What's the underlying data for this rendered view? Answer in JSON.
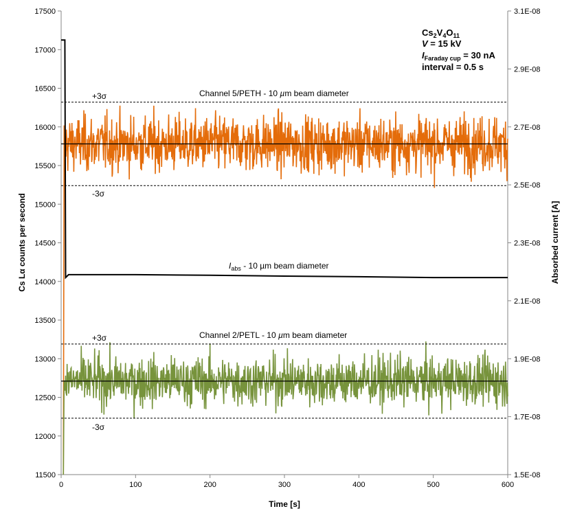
{
  "chart_data": {
    "type": "line",
    "xlabel": "Time [s]",
    "ylabel": "Cs Lα counts per second",
    "y2label": "Absorbed current [A]",
    "xlim": [
      0,
      600
    ],
    "ylim": [
      11500,
      17500
    ],
    "y2lim": [
      1.5e-08,
      3.1e-08
    ],
    "xticks": [
      "0",
      "100",
      "200",
      "300",
      "400",
      "500",
      "600"
    ],
    "yticks": [
      "11500",
      "12000",
      "12500",
      "13000",
      "13500",
      "14000",
      "14500",
      "15000",
      "15500",
      "16000",
      "16500",
      "17000",
      "17500"
    ],
    "y2ticks": [
      "1.5E-08",
      "1.7E-08",
      "1.9E-08",
      "2.1E-08",
      "2.3E-08",
      "2.5E-08",
      "2.7E-08",
      "2.9E-08",
      "3.1E-08"
    ],
    "grid": false,
    "annotation": {
      "compound": "Cs",
      "s1": "2",
      "v": "V",
      "s2": "4",
      "o": "O",
      "s3": "11",
      "voltage_var": "V",
      "voltage": " = 15 kV",
      "current_var": "I",
      "current_sub": "Faraday cup",
      "current": " = 30 nA",
      "interval": "interval = 0.5 s"
    },
    "interval_s": 0.5,
    "series": [
      {
        "name": "Channel 5/PETH - 10 µm beam diameter",
        "label": "Channel 5/PETH - 10 ",
        "label_unit": "µ",
        "label_tail": "m beam diameter",
        "color": "#E46C0A",
        "axis": "left",
        "mean": 15780,
        "sigma": 180,
        "plus3": "+3σ",
        "minus3": "-3σ",
        "start_value": 11500
      },
      {
        "name": "Channel 2/PETL - 10 µm beam diameter",
        "label": "Channel 2/PETL - 10 ",
        "label_unit": "µ",
        "label_tail": "m beam diameter",
        "color": "#77933C",
        "axis": "left",
        "mean": 12710,
        "sigma": 160,
        "plus3": "+3σ",
        "minus3": "-3σ",
        "start_value": 11500
      },
      {
        "name": "I_abs - 10 µm beam diameter",
        "label_var": "I",
        "label_sub": "abs",
        "label_tail": " - 10 µm beam diameter",
        "color": "#000000",
        "axis": "right",
        "initial": 3e-08,
        "points": [
          [
            0,
            3e-08
          ],
          [
            5,
            3e-08
          ],
          [
            6,
            2.18e-08
          ],
          [
            10,
            2.19e-08
          ],
          [
            100,
            2.19e-08
          ],
          [
            200,
            2.188e-08
          ],
          [
            300,
            2.185e-08
          ],
          [
            400,
            2.183e-08
          ],
          [
            500,
            2.18e-08
          ],
          [
            600,
            2.18e-08
          ]
        ]
      }
    ]
  }
}
